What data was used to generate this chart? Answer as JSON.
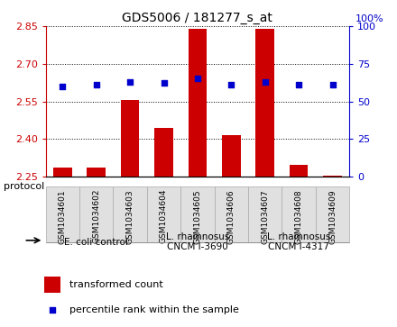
{
  "title": "GDS5006 / 181277_s_at",
  "samples": [
    "GSM1034601",
    "GSM1034602",
    "GSM1034603",
    "GSM1034604",
    "GSM1034605",
    "GSM1034606",
    "GSM1034607",
    "GSM1034608",
    "GSM1034609"
  ],
  "bar_values": [
    2.285,
    2.285,
    2.555,
    2.445,
    2.84,
    2.415,
    2.84,
    2.295,
    2.255
  ],
  "percentile_values": [
    60,
    61,
    63,
    62,
    65,
    61,
    63,
    61,
    61
  ],
  "ylim_left": [
    2.25,
    2.85
  ],
  "ylim_right": [
    0,
    100
  ],
  "yticks_left": [
    2.25,
    2.4,
    2.55,
    2.7,
    2.85
  ],
  "yticks_right": [
    0,
    25,
    50,
    75,
    100
  ],
  "bar_color": "#cc0000",
  "marker_color": "#0000cc",
  "group_boundaries": [
    {
      "label": "E. coli control",
      "start": 0,
      "end": 3,
      "color": "#ccffcc"
    },
    {
      "label": "L. rhamnosus\nCNCM I-3690",
      "start": 3,
      "end": 6,
      "color": "#99ee99"
    },
    {
      "label": "L. rhamnosus\nCNCM I-4317",
      "start": 6,
      "end": 9,
      "color": "#44cc44"
    }
  ],
  "legend_bar_label": "transformed count",
  "legend_marker_label": "percentile rank within the sample",
  "protocol_label": "protocol",
  "bar_width": 0.55,
  "bar_bottom": 2.25
}
